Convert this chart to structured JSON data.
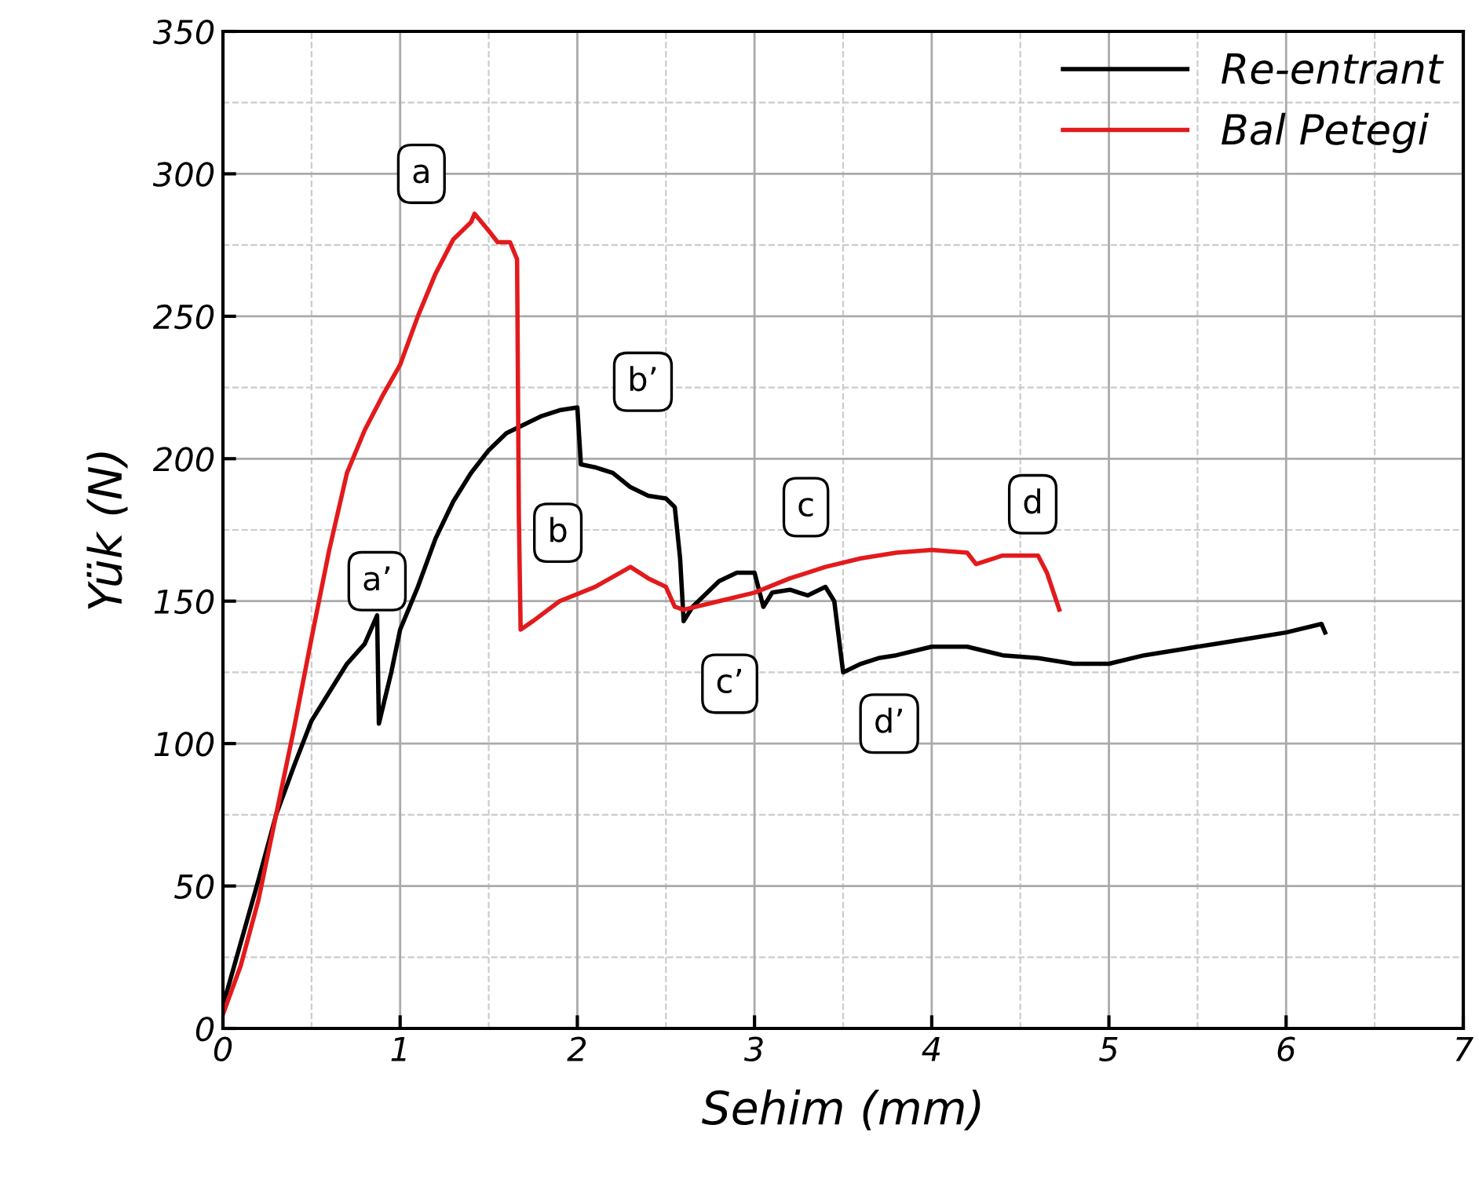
{
  "chart_data": {
    "type": "line",
    "xlabel": "Sehim (mm)",
    "ylabel": "Yük (N)",
    "xlim": [
      0,
      7
    ],
    "ylim": [
      0,
      350
    ],
    "xticks": [
      0,
      1,
      2,
      3,
      4,
      5,
      6,
      7
    ],
    "yticks": [
      0,
      50,
      100,
      150,
      200,
      250,
      300,
      350
    ],
    "grid": true,
    "legend": "top right",
    "marker": "none",
    "line_style": "solid",
    "series": [
      {
        "name": "Re-entrant",
        "color": "#000000",
        "x": [
          0,
          0.1,
          0.2,
          0.3,
          0.4,
          0.5,
          0.6,
          0.7,
          0.8,
          0.87,
          0.88,
          0.95,
          1.0,
          1.1,
          1.2,
          1.3,
          1.4,
          1.5,
          1.6,
          1.7,
          1.8,
          1.9,
          2.0,
          2.02,
          2.1,
          2.2,
          2.3,
          2.4,
          2.5,
          2.55,
          2.58,
          2.6,
          2.65,
          2.8,
          2.9,
          3.0,
          3.05,
          3.1,
          3.2,
          3.3,
          3.4,
          3.45,
          3.5,
          3.6,
          3.7,
          3.8,
          4.0,
          4.2,
          4.4,
          4.6,
          4.8,
          5.0,
          5.2,
          5.4,
          5.6,
          5.8,
          6.0,
          6.2,
          6.22
        ],
        "values": [
          8,
          30,
          52,
          75,
          92,
          108,
          118,
          128,
          135,
          145,
          107,
          125,
          140,
          155,
          172,
          185,
          195,
          203,
          209,
          212,
          215,
          217,
          218,
          198,
          197,
          195,
          190,
          187,
          186,
          183,
          165,
          143,
          148,
          157,
          160,
          160,
          148,
          153,
          154,
          152,
          155,
          150,
          125,
          128,
          130,
          131,
          134,
          134,
          131,
          130,
          128,
          128,
          131,
          133,
          135,
          137,
          139,
          142,
          139
        ]
      },
      {
        "name": "Bal Petegi",
        "color": "#e31a1c",
        "x": [
          0,
          0.1,
          0.2,
          0.3,
          0.4,
          0.5,
          0.6,
          0.7,
          0.8,
          0.9,
          1.0,
          1.1,
          1.2,
          1.3,
          1.4,
          1.42,
          1.5,
          1.55,
          1.62,
          1.66,
          1.67,
          1.68,
          1.75,
          1.9,
          2.1,
          2.3,
          2.4,
          2.5,
          2.55,
          2.6,
          2.8,
          3.0,
          3.2,
          3.4,
          3.6,
          3.8,
          4.0,
          4.2,
          4.25,
          4.4,
          4.6,
          4.65,
          4.72
        ],
        "values": [
          5,
          22,
          45,
          75,
          105,
          137,
          168,
          195,
          210,
          222,
          233,
          250,
          265,
          277,
          283,
          286,
          280,
          276,
          276,
          270,
          180,
          140,
          143,
          150,
          155,
          162,
          158,
          155,
          148,
          147,
          150,
          153,
          158,
          162,
          165,
          167,
          168,
          167,
          163,
          166,
          166,
          160,
          147
        ]
      }
    ],
    "annotations": [
      {
        "text": "a",
        "x": 1.12,
        "y": 300
      },
      {
        "text": "a’",
        "x": 0.87,
        "y": 157
      },
      {
        "text": "b’",
        "x": 2.37,
        "y": 227
      },
      {
        "text": "b",
        "x": 1.89,
        "y": 174
      },
      {
        "text": "c",
        "x": 3.29,
        "y": 183
      },
      {
        "text": "c’",
        "x": 2.86,
        "y": 121
      },
      {
        "text": "d",
        "x": 4.57,
        "y": 184
      },
      {
        "text": "d’",
        "x": 3.76,
        "y": 107
      }
    ]
  }
}
